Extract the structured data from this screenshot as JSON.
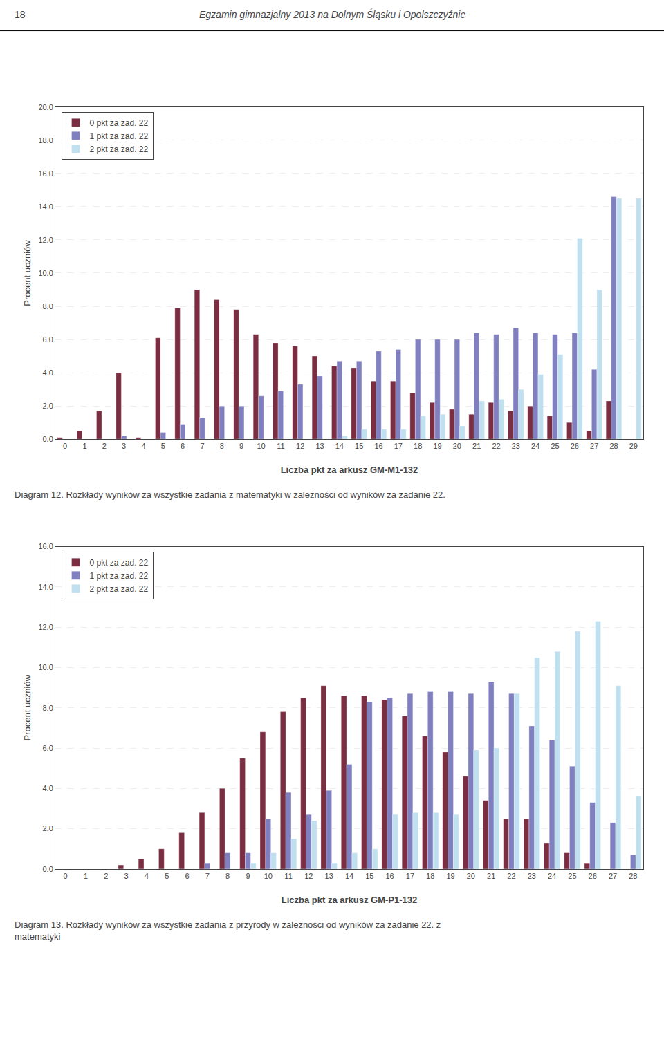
{
  "chart_data": [
    {
      "type": "bar",
      "annotations": [
        "18",
        "Egzamin gimnazjalny 2013 na Dolnym Śląsku i Opolszczyźnie",
        "Diagram 12. Rozkłady wyników za wszystkie zadania z matematyki w zależności od wyników za zadanie 22."
      ],
      "x_label": "Liczba pkt za arkusz GM-M1-132",
      "y_label": "Procent uczniów",
      "categories": [
        0,
        1,
        2,
        3,
        4,
        5,
        6,
        7,
        8,
        9,
        10,
        11,
        12,
        13,
        14,
        15,
        16,
        17,
        18,
        19,
        20,
        21,
        22,
        23,
        24,
        25,
        26,
        27,
        28,
        29
      ],
      "series": [
        {
          "name": "0 pkt za zad. 22",
          "color": "#7B2D42",
          "values": [
            0.1,
            0.5,
            1.7,
            4.0,
            0.1,
            6.1,
            7.9,
            9.0,
            8.4,
            7.8,
            6.3,
            5.8,
            5.6,
            5.0,
            4.4,
            4.3,
            3.5,
            3.5,
            2.8,
            2.2,
            1.8,
            1.5,
            2.2,
            1.7,
            2.0,
            1.4,
            1.0,
            0.5,
            2.3,
            0.0
          ]
        },
        {
          "name": "1 pkt za zad. 22",
          "color": "#8080C0",
          "values": [
            0.0,
            0.0,
            0.0,
            0.2,
            0.0,
            0.4,
            0.9,
            1.3,
            2.0,
            2.0,
            2.6,
            2.9,
            3.3,
            3.8,
            4.7,
            4.7,
            5.3,
            5.4,
            6.0,
            6.0,
            6.0,
            6.4,
            6.3,
            6.7,
            6.4,
            6.3,
            6.4,
            4.2,
            14.6,
            0.0
          ]
        },
        {
          "name": "2 pkt za zad. 22",
          "color": "#C0E0F0",
          "values": [
            0.0,
            0.0,
            0.0,
            0.0,
            0.0,
            0.0,
            0.0,
            0.0,
            0.0,
            0.0,
            0.0,
            0.0,
            0.0,
            0.0,
            0.2,
            0.6,
            0.6,
            0.6,
            1.4,
            1.5,
            0.8,
            2.3,
            2.4,
            3.0,
            3.9,
            5.1,
            12.1,
            9.0,
            14.5,
            14.5
          ]
        }
      ],
      "ylim": [
        0,
        20.0
      ],
      "yticks": [
        {
          "value": 0,
          "label": "0.0"
        },
        {
          "value": 2,
          "label": "2.0"
        },
        {
          "value": 4,
          "label": "4.0"
        },
        {
          "value": 6,
          "label": "6.0"
        },
        {
          "value": 8,
          "label": "8.0"
        },
        {
          "value": 10,
          "label": "10.0"
        },
        {
          "value": 12,
          "label": "12.0"
        },
        {
          "value": 14,
          "label": "14.0"
        },
        {
          "value": 16,
          "label": "16.0"
        },
        {
          "value": 18,
          "label": "18.0"
        },
        {
          "value": 20,
          "label": "20.0"
        }
      ],
      "grid": true,
      "legend": "upper left"
    },
    {
      "type": "bar",
      "annotations": [
        "Diagram 13. Rozkłady wyników za wszystkie zadania z przyrody w zależności od wyników za zadanie 22. z\nmatematyki"
      ],
      "x_label": "Liczba pkt za arkusz GM-P1-132",
      "y_label": "Procent uczniów",
      "categories": [
        0,
        1,
        2,
        3,
        4,
        5,
        6,
        7,
        8,
        9,
        10,
        11,
        12,
        13,
        14,
        15,
        16,
        17,
        18,
        19,
        20,
        21,
        22,
        23,
        24,
        25,
        26,
        27,
        28
      ],
      "series": [
        {
          "name": "0 pkt za zad. 22",
          "color": "#7B2D42",
          "values": [
            0.0,
            0.0,
            0.0,
            0.2,
            0.5,
            1.0,
            1.8,
            2.8,
            4.0,
            5.5,
            6.8,
            7.8,
            8.5,
            9.1,
            8.6,
            8.6,
            8.4,
            7.6,
            6.6,
            5.8,
            4.6,
            3.4,
            2.5,
            2.5,
            1.3,
            0.8,
            0.3,
            0.0,
            0.0
          ]
        },
        {
          "name": "1 pkt za zad. 22",
          "color": "#8080C0",
          "values": [
            0.0,
            0.0,
            0.0,
            0.0,
            0.0,
            0.0,
            0.0,
            0.3,
            0.8,
            0.8,
            2.5,
            3.8,
            2.7,
            3.9,
            5.2,
            8.3,
            8.5,
            8.7,
            8.8,
            8.8,
            8.7,
            9.3,
            8.7,
            7.1,
            6.4,
            5.1,
            3.3,
            2.3,
            0.7
          ]
        },
        {
          "name": "2 pkt za zad. 22",
          "color": "#C0E0F0",
          "values": [
            0.0,
            0.0,
            0.0,
            0.0,
            0.0,
            0.0,
            0.0,
            0.0,
            0.0,
            0.3,
            0.8,
            1.5,
            2.4,
            0.3,
            0.8,
            1.0,
            2.7,
            2.8,
            2.8,
            2.7,
            5.9,
            6.0,
            8.7,
            10.5,
            10.8,
            11.8,
            12.3,
            9.1,
            3.6
          ]
        }
      ],
      "ylim": [
        0,
        16.0
      ],
      "yticks": [
        {
          "value": 0,
          "label": "0.0"
        },
        {
          "value": 2,
          "label": "2.0"
        },
        {
          "value": 4,
          "label": "4.0"
        },
        {
          "value": 6,
          "label": "6.0"
        },
        {
          "value": 8,
          "label": "8.0"
        },
        {
          "value": 10,
          "label": "10.0"
        },
        {
          "value": 12,
          "label": "12.0"
        },
        {
          "value": 14,
          "label": "14.0"
        },
        {
          "value": 16,
          "label": "16.0"
        }
      ],
      "grid": true,
      "legend": "upper left"
    }
  ]
}
